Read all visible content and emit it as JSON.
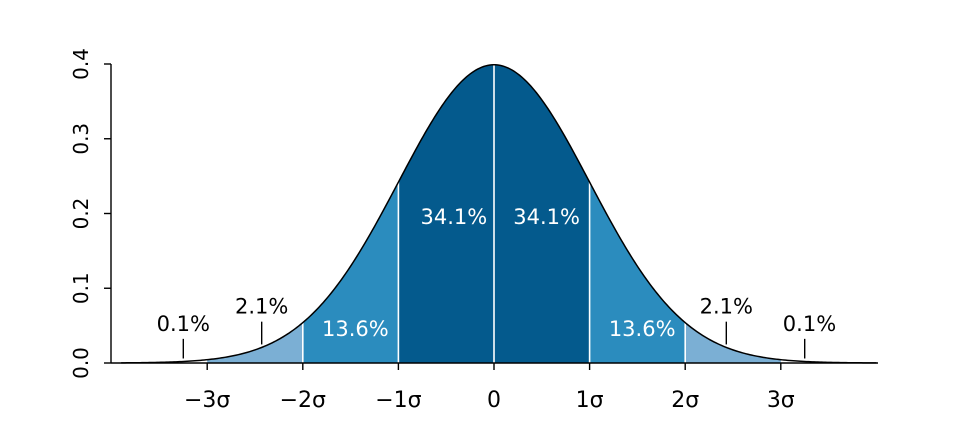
{
  "chart_data": {
    "type": "area",
    "distribution": "standard normal",
    "mean": 0,
    "sd": 1,
    "xlim": [
      -3.9,
      4.0
    ],
    "ylim": [
      0,
      0.4
    ],
    "grid": false,
    "x_ticks": [
      {
        "value": -3,
        "label": "−3σ"
      },
      {
        "value": -2,
        "label": "−2σ"
      },
      {
        "value": -1,
        "label": "−1σ"
      },
      {
        "value": 0,
        "label": "0"
      },
      {
        "value": 1,
        "label": "1σ"
      },
      {
        "value": 2,
        "label": "2σ"
      },
      {
        "value": 3,
        "label": "3σ"
      }
    ],
    "y_ticks": [
      {
        "value": 0.0,
        "label": "0.0"
      },
      {
        "value": 0.1,
        "label": "0.1"
      },
      {
        "value": 0.2,
        "label": "0.2"
      },
      {
        "value": 0.3,
        "label": "0.3"
      },
      {
        "value": 0.4,
        "label": "0.4"
      }
    ],
    "bands": [
      {
        "from": -3,
        "to": -2,
        "color": "#7bafd4"
      },
      {
        "from": -2,
        "to": -1,
        "color": "#2b8cbe"
      },
      {
        "from": -1,
        "to": 0,
        "color": "#045a8d"
      },
      {
        "from": 0,
        "to": 1,
        "color": "#045a8d"
      },
      {
        "from": 1,
        "to": 2,
        "color": "#2b8cbe"
      },
      {
        "from": 2,
        "to": 3,
        "color": "#7bafd4"
      }
    ],
    "band_labels": [
      {
        "x": -0.42,
        "y": 0.186,
        "text": "34.1%",
        "style": "inner"
      },
      {
        "x": 0.55,
        "y": 0.186,
        "text": "34.1%",
        "style": "inner"
      },
      {
        "x": -1.45,
        "y": 0.036,
        "text": "13.6%",
        "style": "inner"
      },
      {
        "x": 1.55,
        "y": 0.036,
        "text": "13.6%",
        "style": "inner"
      },
      {
        "x": -2.43,
        "y": 0.066,
        "text": "2.1%",
        "style": "outer",
        "marker_x": -2.43
      },
      {
        "x": 2.43,
        "y": 0.066,
        "text": "2.1%",
        "style": "outer",
        "marker_x": 2.43
      },
      {
        "x": -3.25,
        "y": 0.043,
        "text": "0.1%",
        "style": "outer",
        "marker_x": -3.25
      },
      {
        "x": 3.3,
        "y": 0.043,
        "text": "0.1%",
        "style": "outer",
        "marker_x": 3.25
      }
    ],
    "colors": {
      "curve": "#000000",
      "divider": "#ffffff",
      "axis": "#000000"
    }
  }
}
